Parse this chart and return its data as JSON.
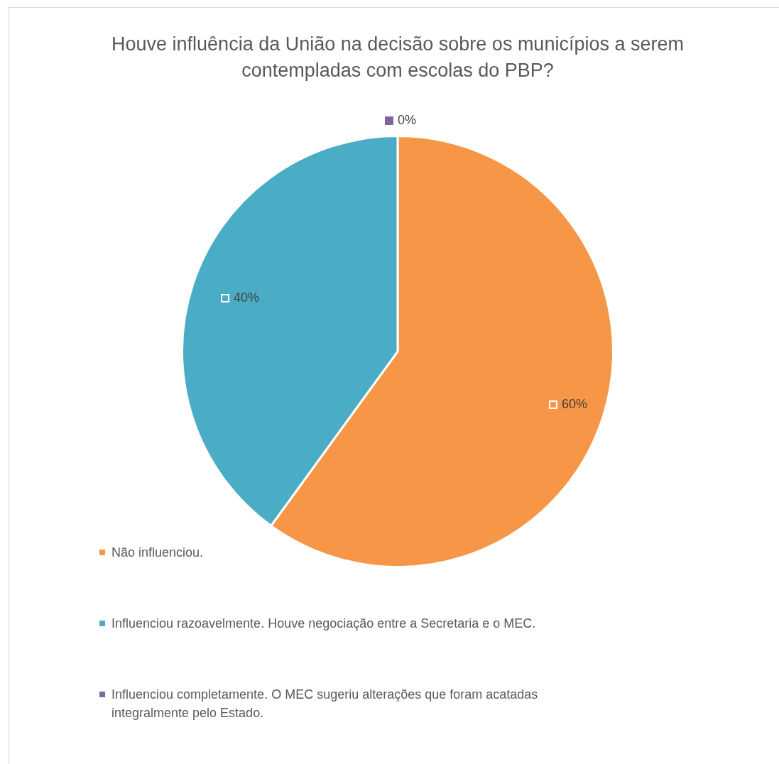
{
  "chart_data": {
    "type": "pie",
    "title": "Houve influência da União na decisão sobre os municípios a serem contempladas com escolas do PBP?",
    "categories": [
      "Não influenciou.",
      "Influenciou razoavelmente. Houve negociação entre a Secretaria e o MEC.",
      "Influenciou completamente. O MEC sugeriu alterações que foram acatadas integralmente pelo Estado."
    ],
    "values": [
      60,
      40,
      0
    ],
    "colors": [
      "#f79646",
      "#4bacc6",
      "#8064a2"
    ],
    "value_labels": [
      "60%",
      "40%",
      "0%"
    ],
    "legend": "bottom left"
  }
}
